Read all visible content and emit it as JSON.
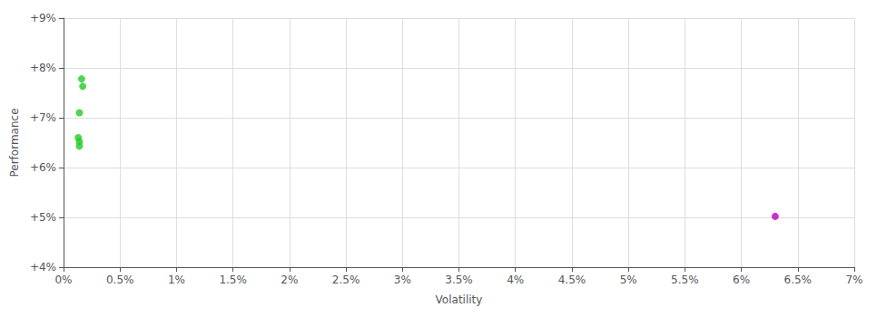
{
  "chart_data": {
    "type": "scatter",
    "xlabel": "Volatility",
    "ylabel": "Performance",
    "series": [
      {
        "color": "#22cc22",
        "x": [
          0.16,
          0.17,
          0.14,
          0.13,
          0.14,
          0.14
        ],
        "values": [
          7.78,
          7.63,
          7.1,
          6.6,
          6.52,
          6.43
        ]
      },
      {
        "color": "#bb00bb",
        "x": [
          6.3
        ],
        "values": [
          5.02
        ]
      }
    ],
    "xlim": [
      0,
      7
    ],
    "xticks": [
      {
        "value": 0.0,
        "label": "0%"
      },
      {
        "value": 0.5,
        "label": "0.5%"
      },
      {
        "value": 1.0,
        "label": "1%"
      },
      {
        "value": 1.5,
        "label": "1.5%"
      },
      {
        "value": 2.0,
        "label": "2%"
      },
      {
        "value": 2.5,
        "label": "2.5%"
      },
      {
        "value": 3.0,
        "label": "3%"
      },
      {
        "value": 3.5,
        "label": "3.5%"
      },
      {
        "value": 4.0,
        "label": "4%"
      },
      {
        "value": 4.5,
        "label": "4.5%"
      },
      {
        "value": 5.0,
        "label": "5%"
      },
      {
        "value": 5.5,
        "label": "5.5%"
      },
      {
        "value": 6.0,
        "label": "6%"
      },
      {
        "value": 6.5,
        "label": "6.5%"
      },
      {
        "value": 7.0,
        "label": "7%"
      }
    ],
    "ylim": [
      4,
      9
    ],
    "yticks": [
      {
        "value": 4,
        "label": "+4%"
      },
      {
        "value": 5,
        "label": "+5%"
      },
      {
        "value": 6,
        "label": "+6%"
      },
      {
        "value": 7,
        "label": "+7%"
      },
      {
        "value": 8,
        "label": "+8%"
      },
      {
        "value": 9,
        "label": "+9%"
      }
    ],
    "grid": true
  }
}
